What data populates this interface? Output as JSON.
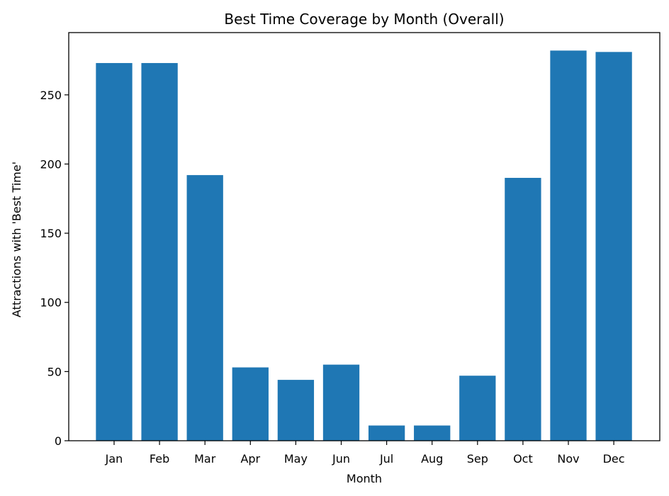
{
  "chart_data": {
    "type": "bar",
    "title": "Best Time Coverage by Month (Overall)",
    "xlabel": "Month",
    "ylabel": "Attractions with 'Best Time'",
    "categories": [
      "Jan",
      "Feb",
      "Mar",
      "Apr",
      "May",
      "Jun",
      "Jul",
      "Aug",
      "Sep",
      "Oct",
      "Nov",
      "Dec"
    ],
    "values": [
      273,
      273,
      192,
      53,
      44,
      55,
      11,
      11,
      47,
      190,
      282,
      281
    ],
    "ylim": [
      0,
      295
    ],
    "yticks": [
      0,
      50,
      100,
      150,
      200,
      250
    ],
    "bar_color": "#1f77b4",
    "grid": false,
    "legend": "none"
  }
}
